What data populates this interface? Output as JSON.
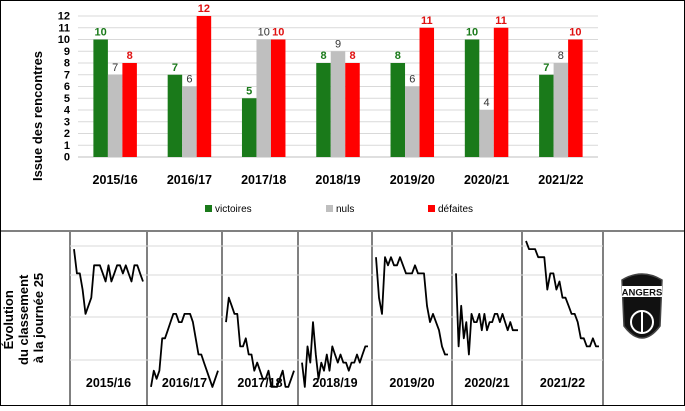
{
  "chart_data": [
    {
      "type": "bar",
      "ylabel": "Issue des rencontres",
      "categories": [
        "2015/16",
        "2016/17",
        "2017/18",
        "2018/19",
        "2019/20",
        "2020/21",
        "2021/22"
      ],
      "ylim": [
        0,
        12
      ],
      "yticks": [
        "0",
        "1",
        "2",
        "3",
        "4",
        "5",
        "6",
        "7",
        "8",
        "9",
        "10",
        "11",
        "12"
      ],
      "grid": true,
      "legend_position": "bottom",
      "series": [
        {
          "name": "victoires",
          "color": "#1a7a1a",
          "values": [
            10,
            7,
            5,
            8,
            8,
            10,
            7
          ]
        },
        {
          "name": "nuls",
          "color": "#bfbfbf",
          "values": [
            7,
            6,
            10,
            9,
            6,
            4,
            8
          ]
        },
        {
          "name": "défaites",
          "color": "#ff0000",
          "values": [
            8,
            12,
            10,
            8,
            11,
            11,
            10
          ]
        }
      ],
      "label_colors": {
        "victoires": "#1a7a1a",
        "nuls": "#333333",
        "défaites": "#e01010"
      }
    },
    {
      "type": "line",
      "ylabel_lines": [
        "Évolution",
        "du classement",
        "à la journée 25"
      ],
      "ylim": [
        20,
        1
      ],
      "grid": true,
      "panels": [
        {
          "season": "2015/16",
          "ranks": [
            2,
            5,
            5,
            7,
            10,
            9,
            8,
            4,
            4,
            4,
            5,
            6,
            4,
            6,
            5,
            4,
            4,
            5,
            4,
            5,
            6,
            4,
            4,
            5,
            6
          ]
        },
        {
          "season": "2016/17",
          "ranks": [
            19,
            17,
            18,
            17,
            13,
            13,
            12,
            11,
            10,
            10,
            11,
            11,
            10,
            10,
            10,
            11,
            13,
            15,
            15,
            16,
            17,
            18,
            19,
            18,
            17
          ]
        },
        {
          "season": "2017/18",
          "ranks": [
            11,
            8,
            9,
            10,
            10,
            14,
            14,
            13,
            15,
            15,
            17,
            16,
            17,
            18,
            18,
            17,
            19,
            19,
            19,
            18,
            17,
            19,
            19,
            18,
            17
          ]
        },
        {
          "season": "2018/19",
          "ranks": [
            16,
            19,
            14,
            16,
            11,
            15,
            18,
            16,
            17,
            15,
            17,
            14,
            15,
            16,
            15,
            16,
            16,
            17,
            16,
            16,
            15,
            16,
            15,
            14,
            14
          ]
        },
        {
          "season": "2019/20",
          "ranks": [
            3,
            8,
            10,
            3,
            4,
            3,
            4,
            4,
            3,
            4,
            5,
            5,
            5,
            4,
            5,
            5,
            5,
            9,
            11,
            10,
            11,
            12,
            14,
            15,
            15
          ]
        },
        {
          "season": "2020/21",
          "ranks": [
            5,
            14,
            9,
            13,
            11,
            15,
            10,
            11,
            11,
            10,
            12,
            10,
            12,
            11,
            11,
            10,
            10,
            11,
            10,
            11,
            12,
            11,
            12,
            12,
            12
          ]
        },
        {
          "season": "2021/22",
          "ranks": [
            1,
            2,
            2,
            2,
            3,
            3,
            3,
            7,
            5,
            5,
            7,
            6,
            8,
            8,
            9,
            10,
            10,
            11,
            13,
            13,
            14,
            14,
            13,
            14,
            14
          ]
        }
      ]
    }
  ],
  "logo": {
    "text": "ANGERS"
  }
}
